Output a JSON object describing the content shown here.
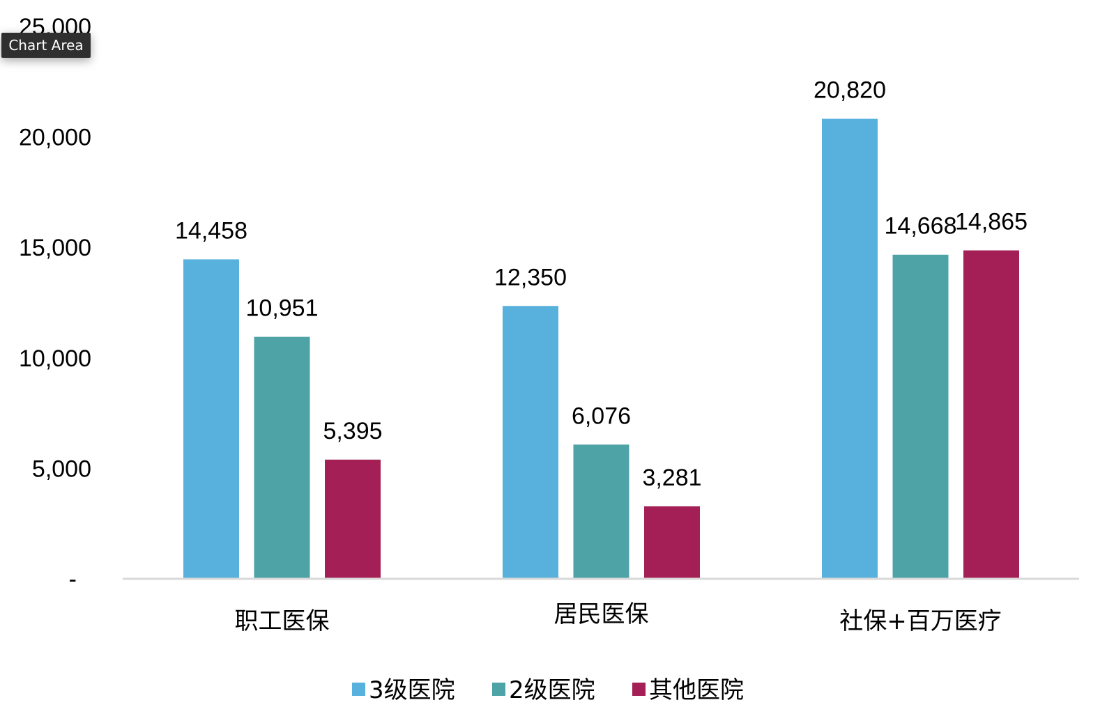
{
  "tooltip": {
    "text": "Chart Area"
  },
  "chart_data": {
    "type": "bar",
    "categories": [
      "职工医保",
      "居民医保",
      "社保+百万医疗"
    ],
    "series": [
      {
        "name": "3级医院",
        "values": [
          14458,
          12350,
          20820
        ],
        "color": "#57b1dc"
      },
      {
        "name": "2级医院",
        "values": [
          10951,
          6076,
          14668
        ],
        "color": "#4ea3a7"
      },
      {
        "name": "其他医院",
        "values": [
          5395,
          3281,
          14865
        ],
        "color": "#a41f55"
      }
    ],
    "data_labels": [
      [
        "14,458",
        "12,350",
        "20,820"
      ],
      [
        "10,951",
        "6,076",
        "14,668"
      ],
      [
        "5,395",
        "3,281",
        "14,865"
      ]
    ],
    "yticks": [
      0,
      5000,
      10000,
      15000,
      20000,
      25000
    ],
    "ytick_labels": [
      "-",
      "5,000",
      "10,000",
      "15,000",
      "20,000",
      "25,000"
    ],
    "ylim": [
      0,
      25000
    ],
    "legend_position": "bottom",
    "grid": false
  }
}
